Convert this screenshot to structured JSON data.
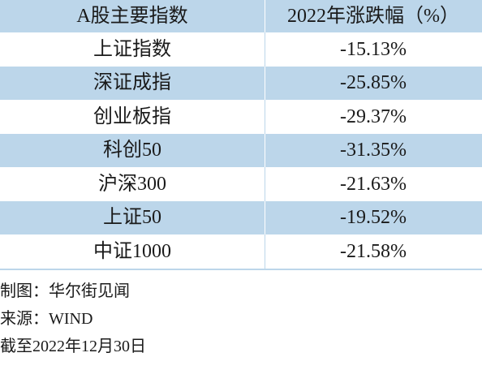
{
  "table": {
    "headers": [
      "A股主要指数",
      "2022年涨跌幅（%）"
    ],
    "rows": [
      {
        "name": "上证指数",
        "change": "-15.13%"
      },
      {
        "name": "深证成指",
        "change": "-25.85%"
      },
      {
        "name": "创业板指",
        "change": "-29.37%"
      },
      {
        "name": "科创50",
        "change": "-31.35%"
      },
      {
        "name": "沪深300",
        "change": "-21.63%"
      },
      {
        "name": "上证50",
        "change": "-19.52%"
      },
      {
        "name": "中证1000",
        "change": "-21.58%"
      }
    ]
  },
  "footer": {
    "producer": "制图：华尔街见闻",
    "source": "来源：WIND",
    "as_of": "截至2022年12月30日"
  },
  "colors": {
    "band": "#bcd6ea"
  }
}
